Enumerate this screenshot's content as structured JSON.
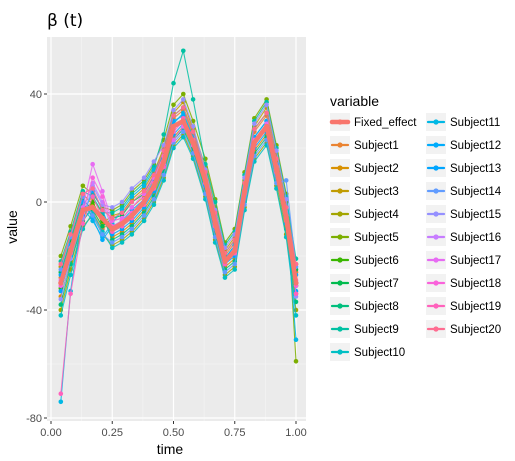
{
  "chart_data": {
    "type": "line",
    "title": "β (t)",
    "xlabel": "time",
    "ylabel": "value",
    "xlim": [
      0.0,
      1.0
    ],
    "ylim": [
      -80,
      60
    ],
    "xticks": [
      0.0,
      0.25,
      0.5,
      0.75,
      1.0
    ],
    "xtick_labels": [
      "0.00",
      "0.25",
      "0.50",
      "0.75",
      "1.00"
    ],
    "yticks": [
      -80,
      -40,
      0,
      40
    ],
    "ytick_labels": [
      "-80",
      "-40",
      "0",
      "40"
    ],
    "grid": true,
    "background": "#ebebeb",
    "legend": {
      "title": "variable",
      "placement": "right",
      "columns": 2
    },
    "x": [
      0.04,
      0.08,
      0.13,
      0.17,
      0.21,
      0.25,
      0.29,
      0.33,
      0.38,
      0.42,
      0.46,
      0.5,
      0.54,
      0.58,
      0.63,
      0.67,
      0.71,
      0.75,
      0.79,
      0.83,
      0.88,
      0.92,
      0.96,
      1.0
    ],
    "series": [
      {
        "name": "Fixed_effect",
        "color": "#F8766D",
        "values": [
          -30,
          -18,
          -3,
          -2,
          -6,
          -10,
          -8,
          -5,
          0,
          6,
          15,
          28,
          30,
          22,
          8,
          -8,
          -22,
          -18,
          4,
          22,
          28,
          12,
          -6,
          -30
        ]
      },
      {
        "name": "Subject1",
        "color": "#EA8331",
        "values": [
          -28,
          -15,
          -1,
          -4,
          -10,
          -7,
          -6,
          -2,
          2,
          9,
          18,
          31,
          34,
          25,
          10,
          -5,
          -20,
          -15,
          6,
          26,
          32,
          15,
          -3,
          -26
        ]
      },
      {
        "name": "Subject2",
        "color": "#D89000",
        "values": [
          -35,
          -22,
          -6,
          1,
          -4,
          -13,
          -11,
          -8,
          -3,
          3,
          12,
          24,
          28,
          20,
          5,
          -11,
          -24,
          -21,
          1,
          19,
          25,
          9,
          -9,
          -34
        ]
      },
      {
        "name": "Subject3",
        "color": "#C09B00",
        "values": [
          -24,
          -12,
          3,
          -1,
          -8,
          -5,
          -4,
          1,
          5,
          11,
          20,
          33,
          37,
          27,
          13,
          -2,
          -18,
          -13,
          8,
          28,
          35,
          18,
          0,
          -23
        ]
      },
      {
        "name": "Subject4",
        "color": "#A3A500",
        "values": [
          -40,
          -25,
          -9,
          -5,
          -12,
          -16,
          -14,
          -11,
          -6,
          0,
          9,
          21,
          25,
          17,
          2,
          -14,
          -27,
          -24,
          -2,
          16,
          22,
          6,
          -12,
          -40
        ]
      },
      {
        "name": "Subject5",
        "color": "#7CAE00",
        "values": [
          -20,
          -9,
          6,
          3,
          -2,
          -3,
          -1,
          4,
          8,
          14,
          23,
          36,
          40,
          30,
          16,
          1,
          -15,
          -10,
          11,
          31,
          38,
          21,
          3,
          -59
        ]
      },
      {
        "name": "Subject6",
        "color": "#39B600",
        "values": [
          -32,
          -19,
          -4,
          0,
          -7,
          -11,
          -9,
          -6,
          -1,
          5,
          14,
          27,
          31,
          23,
          7,
          -9,
          -23,
          -19,
          3,
          21,
          27,
          11,
          -7,
          -31
        ]
      },
      {
        "name": "Subject7",
        "color": "#00BB4E",
        "values": [
          -26,
          -14,
          1,
          -3,
          -9,
          -6,
          -5,
          0,
          3,
          10,
          19,
          32,
          35,
          26,
          11,
          -4,
          -19,
          -14,
          7,
          27,
          33,
          16,
          -2,
          -25
        ]
      },
      {
        "name": "Subject8",
        "color": "#00BF7D",
        "values": [
          -38,
          -23,
          -7,
          -2,
          -5,
          -14,
          -12,
          -9,
          -4,
          2,
          11,
          23,
          27,
          19,
          4,
          -12,
          -25,
          -22,
          0,
          18,
          24,
          8,
          -10,
          -37
        ]
      },
      {
        "name": "Subject9",
        "color": "#00C1A3",
        "values": [
          -22,
          -11,
          4,
          2,
          -4,
          -4,
          -2,
          3,
          7,
          13,
          25,
          44,
          56,
          38,
          14,
          0,
          -16,
          -11,
          10,
          30,
          37,
          20,
          2,
          -21
        ]
      },
      {
        "name": "Subject10",
        "color": "#00BFC4",
        "values": [
          -42,
          -27,
          -10,
          -4,
          -11,
          -17,
          -15,
          -12,
          -7,
          -1,
          8,
          20,
          24,
          16,
          1,
          -15,
          -28,
          -25,
          -3,
          15,
          21,
          5,
          -13,
          -42
        ]
      },
      {
        "name": "Subject11",
        "color": "#00B8E5",
        "values": [
          -74,
          -33,
          -2,
          -7,
          -13,
          -8,
          -3,
          2,
          6,
          12,
          17,
          29,
          33,
          24,
          9,
          -6,
          -21,
          -16,
          5,
          24,
          30,
          14,
          -4,
          -51
        ]
      },
      {
        "name": "Subject12",
        "color": "#00ACFC",
        "values": [
          -27,
          -16,
          0,
          -6,
          -14,
          -9,
          -7,
          -3,
          1,
          8,
          16,
          30,
          32,
          24,
          9,
          -6,
          -21,
          -16,
          5,
          24,
          30,
          14,
          -4,
          -27
        ]
      },
      {
        "name": "Subject13",
        "color": "#00A5FF",
        "values": [
          -33,
          -20,
          -5,
          4,
          -3,
          -12,
          -10,
          -7,
          -2,
          4,
          13,
          25,
          29,
          21,
          6,
          -10,
          -23,
          -20,
          2,
          20,
          26,
          10,
          -8,
          -33
        ]
      },
      {
        "name": "Subject14",
        "color": "#619CFF",
        "values": [
          -25,
          -13,
          2,
          -5,
          -12,
          -15,
          -13,
          -10,
          -5,
          1,
          10,
          22,
          26,
          18,
          3,
          -13,
          -26,
          -23,
          -1,
          17,
          23,
          7,
          8,
          -24
        ]
      },
      {
        "name": "Subject15",
        "color": "#9590FF",
        "values": [
          -36,
          -21,
          -6,
          6,
          -1,
          -2,
          0,
          5,
          9,
          15,
          21,
          34,
          38,
          28,
          12,
          -3,
          -17,
          -12,
          9,
          29,
          36,
          19,
          1,
          -35
        ]
      },
      {
        "name": "Subject16",
        "color": "#C77CFF",
        "values": [
          -30,
          -17,
          -3,
          7,
          0,
          -10,
          -8,
          -5,
          0,
          6,
          15,
          28,
          30,
          22,
          8,
          -8,
          -22,
          -18,
          4,
          22,
          28,
          12,
          -6,
          -30
        ]
      },
      {
        "name": "Subject17",
        "color": "#E76BF3",
        "values": [
          -29,
          -18,
          -2,
          14,
          4,
          -7,
          -6,
          -2,
          3,
          9,
          17,
          23,
          28,
          21,
          7,
          -7,
          -22,
          -17,
          4,
          23,
          29,
          13,
          -5,
          -29
        ]
      },
      {
        "name": "Subject18",
        "color": "#FA62DB",
        "values": [
          -31,
          -19,
          -4,
          9,
          2,
          -9,
          -7,
          -4,
          1,
          7,
          14,
          26,
          30,
          22,
          8,
          -8,
          -22,
          -18,
          4,
          22,
          28,
          12,
          -6,
          -31
        ]
      },
      {
        "name": "Subject19",
        "color": "#FF62BC",
        "values": [
          -71,
          -34,
          -8,
          2,
          -6,
          -11,
          -9,
          -6,
          -1,
          5,
          13,
          27,
          31,
          23,
          7,
          -9,
          -23,
          -19,
          3,
          21,
          27,
          11,
          -7,
          -34
        ]
      },
      {
        "name": "Subject20",
        "color": "#FF6C91",
        "values": [
          -23,
          -12,
          3,
          5,
          -3,
          -6,
          -4,
          0,
          4,
          10,
          19,
          32,
          35,
          26,
          11,
          -4,
          -19,
          -14,
          7,
          27,
          33,
          16,
          -2,
          -23
        ]
      }
    ]
  }
}
